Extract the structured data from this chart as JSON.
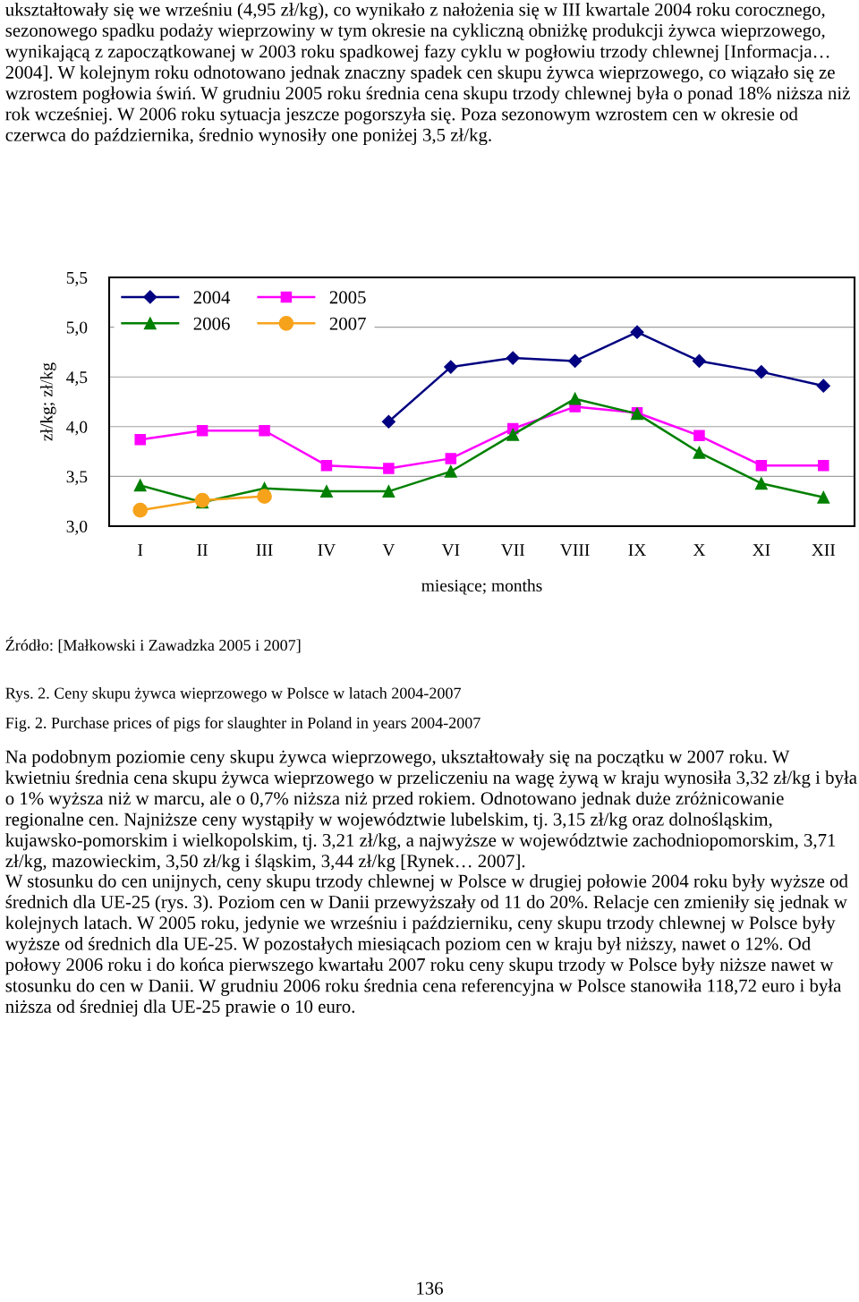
{
  "chart_data": {
    "type": "line",
    "xlabel": "miesiące; months",
    "ylabel": "zł/kg; zł/kg",
    "categories": [
      "I",
      "II",
      "III",
      "IV",
      "V",
      "VI",
      "VII",
      "VIII",
      "IX",
      "X",
      "XI",
      "XII"
    ],
    "series": [
      {
        "name": "2004",
        "color": "#000080",
        "marker": "diamond",
        "values": [
          null,
          null,
          null,
          null,
          4.05,
          4.6,
          4.69,
          4.66,
          4.95,
          4.66,
          4.55,
          4.41
        ]
      },
      {
        "name": "2005",
        "color": "#ff00ff",
        "marker": "square",
        "values": [
          3.87,
          3.96,
          3.96,
          3.61,
          3.58,
          3.68,
          3.98,
          4.2,
          4.14,
          3.91,
          3.61,
          3.61
        ]
      },
      {
        "name": "2006",
        "color": "#008000",
        "marker": "triangle",
        "values": [
          3.41,
          3.24,
          3.38,
          3.35,
          3.35,
          3.55,
          3.92,
          4.28,
          4.13,
          3.74,
          3.43,
          3.29
        ]
      },
      {
        "name": "2007",
        "color": "#f7a21b",
        "marker": "circle",
        "values": [
          3.16,
          3.26,
          3.3,
          null,
          null,
          null,
          null,
          null,
          null,
          null,
          null,
          null
        ]
      }
    ],
    "ylim": [
      3.0,
      5.5
    ],
    "yticks": [
      {
        "value": 3.0,
        "label": "3,0"
      },
      {
        "value": 3.5,
        "label": "3,5"
      },
      {
        "value": 4.0,
        "label": "4,0"
      },
      {
        "value": 4.5,
        "label": "4,5"
      },
      {
        "value": 5.0,
        "label": "5,0"
      },
      {
        "value": 5.5,
        "label": "5,5"
      }
    ],
    "grid": "y",
    "legend": "top left",
    "line_style": "solid",
    "annotations": [
      "ukształtowały się we wrześniu (4,95 zł/kg), co wynikało z nałożenia się w III kwartale 2004 roku corocznego, sezonowego spadku podaży wieprzowiny w tym okresie na cykliczną obniżkę produkcji żywca wieprzowego, wynikającą z zapoczątkowanej w 2003 roku spadkowej fazy cyklu w pogłowiu trzody chlewnej [Informacja… 2004]. W kolejnym roku odnotowano jednak znaczny spadek cen skupu żywca wieprzowego, co wiązało się ze wzrostem pogłowia świń. W grudniu 2005 roku średnia cena skupu trzody chlewnej była o ponad 18% niższa niż rok wcześniej. W 2006 roku sytuacja jeszcze pogorszyła się. Poza sezonowym wzrostem cen w okresie od czerwca do października, średnio wynosiły one poniżej 3,5 zł/kg.",
      "Źródło: [Małkowski i Zawadzka 2005 i 2007]",
      "Rys. 2. Ceny skupu żywca wieprzowego w Polsce w latach 2004-2007",
      "Fig. 2. Purchase prices of pigs for slaughter in Poland in years 2004-2007",
      "Na podobnym poziomie ceny skupu żywca wieprzowego, ukształtowały się na początku w 2007 roku. W kwietniu średnia cena skupu żywca wieprzowego w przeliczeniu na wagę żywą w kraju wynosiła 3,32 zł/kg i była o 1% wyższa niż w marcu, ale o 0,7% niższa niż przed rokiem. Odnotowano jednak duże zróżnicowanie regionalne cen. Najniższe ceny wystąpiły w województwie lubelskim, tj. 3,15 zł/kg oraz dolnośląskim, kujawsko-pomorskim i wielkopolskim, tj. 3,21 zł/kg, a najwyższe w województwie zachodniopomorskim, 3,71 zł/kg, mazowieckim, 3,50 zł/kg i śląskim, 3,44 zł/kg [Rynek… 2007].",
      "W stosunku do cen unijnych, ceny skupu trzody chlewnej w Polsce w drugiej połowie 2004 roku były wyższe od średnich dla UE-25 (rys. 3). Poziom cen w Danii przewyższały od 11 do 20%. Relacje cen zmieniły się jednak w kolejnych latach. W 2005 roku, jedynie we wrześniu i październiku, ceny skupu trzody chlewnej w Polsce były wyższe od średnich dla UE-25. W pozostałych miesiącach poziom cen w kraju był niższy, nawet o 12%. Od połowy 2006 roku i do końca pierwszego kwartału 2007 roku ceny skupu trzody w Polsce były niższe nawet w stosunku do cen w Danii. W grudniu 2006 roku średnia cena referencyjna w Polsce stanowiła 118,72 euro i była niższa od średniej dla UE-25 prawie o 10 euro.",
      "136"
    ]
  }
}
